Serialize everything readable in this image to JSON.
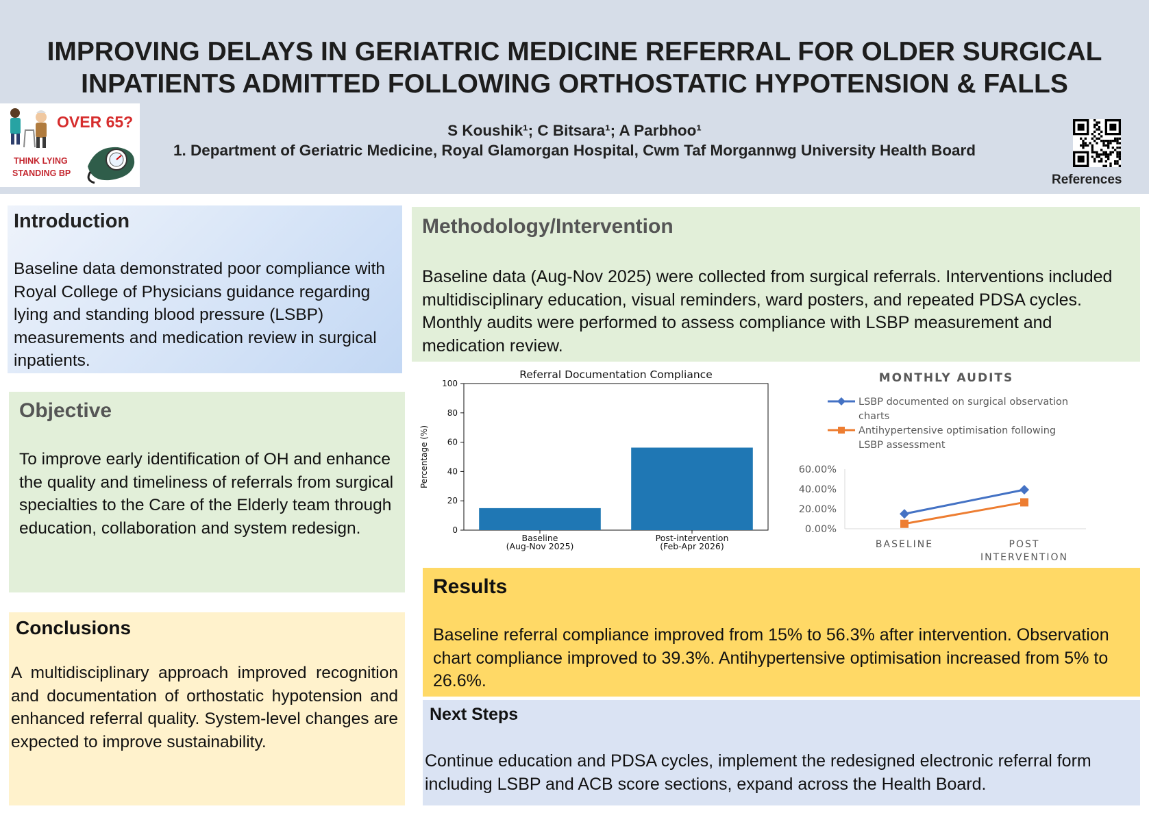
{
  "header": {
    "title_line1": "IMPROVING DELAYS IN GERIATRIC MEDICINE REFERRAL FOR OLDER SURGICAL",
    "title_line2": "INPATIENTS ADMITTED FOLLOWING ORTHOSTATIC HYPOTENSION & FALLS",
    "authors": "S Koushik¹; C Bitsara¹; A Parbhoo¹",
    "affiliation": "1. Department of Geriatric Medicine, Royal Glamorgan Hospital, Cwm Taf Morgannwg University Health Board",
    "references_label": "References"
  },
  "logo": {
    "headline": "OVER 65?",
    "line1": "THINK LYING",
    "line2": "STANDING BP"
  },
  "introduction": {
    "heading": "Introduction",
    "body": "Baseline data demonstrated poor compliance with Royal College of Physicians guidance regarding lying and standing blood pressure (LSBP) measurements and medication review in surgical inpatients."
  },
  "objective": {
    "heading": "Objective",
    "body": "To improve early identification of OH and enhance the quality and timeliness of referrals from surgical specialties to the Care of the Elderly team through education, collaboration and system redesign."
  },
  "conclusions": {
    "heading": "Conclusions",
    "body": "A multidisciplinary approach improved recognition and documentation of orthostatic hypotension and enhanced referral quality. System-level changes are expected to improve sustainability."
  },
  "methodology": {
    "heading": "Methodology/Intervention",
    "body": "Baseline data (Aug-Nov 2025) were collected from surgical referrals. Interventions included multidisciplinary education, visual reminders, ward posters, and repeated PDSA cycles. Monthly audits were performed to assess compliance with LSBP measurement and medication review."
  },
  "results": {
    "heading": "Results",
    "body": "Baseline referral compliance improved from 15% to 56.3% after intervention. Observation chart compliance improved to 39.3%. Antihypertensive optimisation increased from 5% to 26.6%."
  },
  "next_steps": {
    "heading": "Next Steps",
    "body": "Continue education and PDSA cycles, implement the redesigned electronic referral form including LSBP and ACB score sections, expand across the Health Board."
  },
  "chart_data": [
    {
      "type": "bar",
      "title": "Referral Documentation Compliance",
      "ylabel": "Percentage (%)",
      "xlabel": "",
      "ylim": [
        0,
        100
      ],
      "yticks": [
        0,
        20,
        40,
        60,
        80,
        100
      ],
      "categories": [
        [
          "Baseline",
          "(Aug-Nov 2025)"
        ],
        [
          "Post-intervention",
          "(Feb-Apr 2026)"
        ]
      ],
      "values": [
        15,
        56.3
      ],
      "color": "#1f77b4",
      "grid": false
    },
    {
      "type": "line",
      "title": "MONTHLY AUDITS",
      "categories": [
        [
          "BASELINE"
        ],
        [
          "POST",
          "INTERVENTION"
        ]
      ],
      "ylim": [
        0,
        60
      ],
      "yticks": [
        "0.00%",
        "20.00%",
        "40.00%",
        "60.00%"
      ],
      "ytick_values": [
        0,
        20,
        40,
        60
      ],
      "legend_position": "top",
      "grid": false,
      "series": [
        {
          "name_lines": [
            "LSBP documented on surgical observation",
            "charts"
          ],
          "values": [
            15,
            39.3
          ],
          "color": "#4472c4",
          "marker": "diamond"
        },
        {
          "name_lines": [
            "Antihypertensive optimisation following",
            "LSBP assessment"
          ],
          "values": [
            5,
            26.6
          ],
          "color": "#ed7d31",
          "marker": "square"
        }
      ]
    }
  ]
}
